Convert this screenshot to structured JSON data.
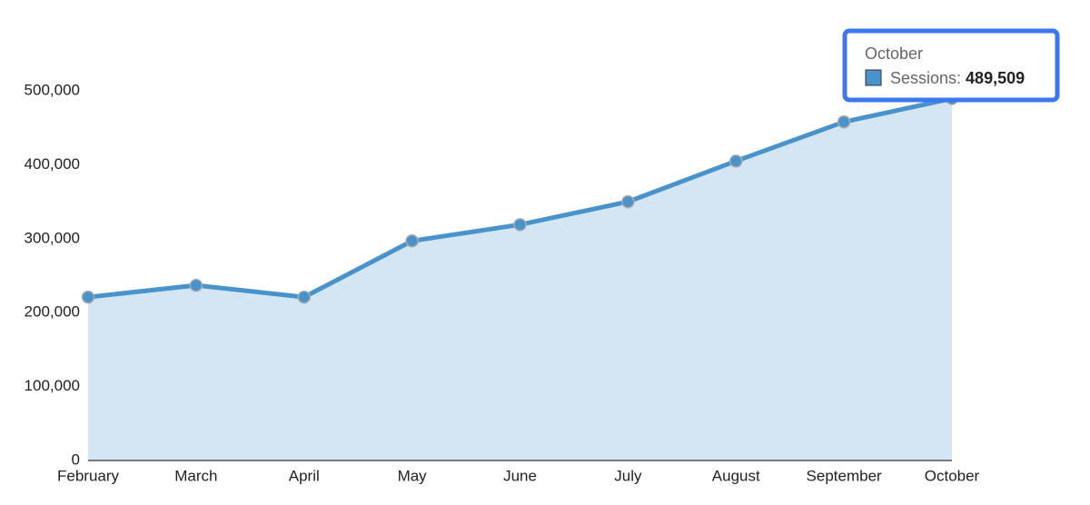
{
  "chart_data": {
    "type": "area",
    "categories": [
      "February",
      "March",
      "April",
      "May",
      "June",
      "July",
      "August",
      "September",
      "October"
    ],
    "values": [
      221000,
      237000,
      221000,
      297000,
      319000,
      350000,
      405000,
      458000,
      489509
    ],
    "color": "#4993cc",
    "fill": "#d4e5f4",
    "ylim": [
      0,
      500000
    ],
    "yticks": [
      0,
      {
        "value": 100000,
        "label": "100,000"
      },
      {
        "value": 200000,
        "label": "200,000"
      },
      {
        "value": 300000,
        "label": "300,000"
      },
      {
        "value": 400000,
        "label": "400,000"
      },
      {
        "value": 500000,
        "label": "500,000"
      }
    ],
    "grid": false,
    "tooltip": {
      "label": "Sessions:",
      "value": "489,509"
    }
  }
}
